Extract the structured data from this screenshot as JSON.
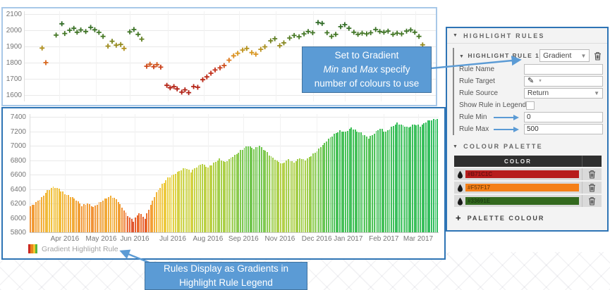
{
  "colors": {
    "accent_blue": "#5B9BD5",
    "callout_border": "#41719C",
    "panel_border": "#2E74B5",
    "top_chart_border": "#A8C8E8"
  },
  "chart_data": [
    {
      "type": "scatter",
      "name": "price-return-scatter",
      "marker": "plus",
      "grid": true,
      "ylim": [
        1600,
        2100
      ],
      "y_ticks": [
        2100,
        2000,
        1900,
        1800,
        1700,
        1600
      ],
      "color_stops": [
        [
          1600,
          "#AE1E14"
        ],
        [
          1760,
          "#C43019"
        ],
        [
          1815,
          "#DE7A1D"
        ],
        [
          1860,
          "#D99A22"
        ],
        [
          1900,
          "#A38E1F"
        ],
        [
          1930,
          "#7A841F"
        ],
        [
          1960,
          "#497A26"
        ],
        [
          2050,
          "#2F6B28"
        ]
      ],
      "points": [
        [
          4.4,
          1890
        ],
        [
          5.3,
          1800
        ],
        [
          7.8,
          1970
        ],
        [
          9.2,
          2040
        ],
        [
          9.9,
          1980
        ],
        [
          11.1,
          2000
        ],
        [
          12.1,
          2012
        ],
        [
          12.9,
          1988
        ],
        [
          13.8,
          2002
        ],
        [
          15.0,
          1992
        ],
        [
          16.2,
          2018
        ],
        [
          17.2,
          2003
        ],
        [
          18.2,
          1987
        ],
        [
          19.2,
          1962
        ],
        [
          20.4,
          1902
        ],
        [
          21.4,
          1932
        ],
        [
          22.4,
          1908
        ],
        [
          23.5,
          1912
        ],
        [
          24.3,
          1888
        ],
        [
          25.7,
          1990
        ],
        [
          26.7,
          2005
        ],
        [
          27.7,
          1975
        ],
        [
          28.6,
          1945
        ],
        [
          29.8,
          1778
        ],
        [
          30.6,
          1790
        ],
        [
          31.5,
          1775
        ],
        [
          32.3,
          1788
        ],
        [
          33.2,
          1772
        ],
        [
          34.7,
          1660
        ],
        [
          35.5,
          1645
        ],
        [
          36.4,
          1652
        ],
        [
          37.2,
          1638
        ],
        [
          38.3,
          1618
        ],
        [
          39.1,
          1632
        ],
        [
          40.0,
          1615
        ],
        [
          41.2,
          1652
        ],
        [
          42.2,
          1648
        ],
        [
          43.4,
          1695
        ],
        [
          44.4,
          1712
        ],
        [
          45.4,
          1735
        ],
        [
          46.4,
          1755
        ],
        [
          47.6,
          1768
        ],
        [
          48.6,
          1782
        ],
        [
          49.8,
          1815
        ],
        [
          50.9,
          1842
        ],
        [
          51.9,
          1858
        ],
        [
          53.1,
          1878
        ],
        [
          54.1,
          1888
        ],
        [
          55.3,
          1862
        ],
        [
          56.3,
          1852
        ],
        [
          57.5,
          1882
        ],
        [
          58.5,
          1898
        ],
        [
          59.9,
          1935
        ],
        [
          60.9,
          1948
        ],
        [
          62.1,
          1905
        ],
        [
          63.1,
          1922
        ],
        [
          64.5,
          1952
        ],
        [
          65.6,
          1968
        ],
        [
          66.8,
          1960
        ],
        [
          68.0,
          1978
        ],
        [
          69.0,
          1992
        ],
        [
          70.1,
          1985
        ],
        [
          71.4,
          2048
        ],
        [
          72.4,
          2042
        ],
        [
          73.6,
          1985
        ],
        [
          74.7,
          1962
        ],
        [
          75.7,
          1975
        ],
        [
          76.9,
          2022
        ],
        [
          77.9,
          2035
        ],
        [
          78.9,
          2012
        ],
        [
          80.1,
          1988
        ],
        [
          81.1,
          1975
        ],
        [
          82.1,
          1982
        ],
        [
          83.2,
          1978
        ],
        [
          84.2,
          1985
        ],
        [
          85.4,
          2005
        ],
        [
          86.4,
          1992
        ],
        [
          87.4,
          1988
        ],
        [
          88.4,
          1995
        ],
        [
          89.6,
          1975
        ],
        [
          90.6,
          1982
        ],
        [
          91.7,
          1978
        ],
        [
          92.9,
          1995
        ],
        [
          93.9,
          2002
        ],
        [
          94.9,
          1988
        ],
        [
          95.9,
          1962
        ],
        [
          96.8,
          1910
        ]
      ]
    },
    {
      "type": "bar",
      "name": "price-gradient-bars",
      "grid": true,
      "ylim": [
        5800,
        7400
      ],
      "y_ticks": [
        7400,
        7200,
        7000,
        6800,
        6600,
        6400,
        6200,
        6000,
        5800
      ],
      "x_labels": [
        {
          "text": "Apr 2016",
          "pct": 8.6
        },
        {
          "text": "May 2016",
          "pct": 17.5
        },
        {
          "text": "Jun 2016",
          "pct": 25.7
        },
        {
          "text": "Jul 2016",
          "pct": 35.0
        },
        {
          "text": "Aug 2016",
          "pct": 43.6
        },
        {
          "text": "Sep 2016",
          "pct": 52.3
        },
        {
          "text": "Nov 2016",
          "pct": 61.2
        },
        {
          "text": "Dec 2016",
          "pct": 70.2
        },
        {
          "text": "Jan 2017",
          "pct": 77.9
        },
        {
          "text": "Feb 2017",
          "pct": 86.6
        },
        {
          "text": "Mar 2017",
          "pct": 95.0
        }
      ],
      "color_stops": [
        [
          5900,
          "#D8422B"
        ],
        [
          6030,
          "#E9652F"
        ],
        [
          6180,
          "#F29B38"
        ],
        [
          6400,
          "#F2BF3B"
        ],
        [
          6570,
          "#E9D243"
        ],
        [
          6700,
          "#C6D247"
        ],
        [
          6830,
          "#9DCE4B"
        ],
        [
          6980,
          "#74C751"
        ],
        [
          7150,
          "#4DC258"
        ],
        [
          7400,
          "#2EBE60"
        ]
      ],
      "weekly_values": [
        6160,
        6210,
        6280,
        6380,
        6430,
        6400,
        6330,
        6300,
        6250,
        6170,
        6200,
        6150,
        6210,
        6260,
        6300,
        6260,
        6150,
        6030,
        5960,
        6070,
        5990,
        6180,
        6350,
        6460,
        6550,
        6600,
        6650,
        6700,
        6640,
        6710,
        6750,
        6700,
        6760,
        6820,
        6770,
        6830,
        6890,
        6950,
        7000,
        6960,
        7000,
        6930,
        6850,
        6790,
        6750,
        6810,
        6770,
        6830,
        6800,
        6860,
        6930,
        7010,
        7090,
        7160,
        7210,
        7190,
        7250,
        7200,
        7160,
        7110,
        7170,
        7240,
        7190,
        7260,
        7310,
        7280,
        7250,
        7300,
        7270,
        7330,
        7360,
        7370
      ]
    }
  ],
  "legend": {
    "label": "Gradient Highlight Rule",
    "icon_colors": [
      "#CC2A1F",
      "#E8821C",
      "#F2C52C",
      "#58B53C"
    ]
  },
  "panel": {
    "title": "HIGHLIGHT RULES",
    "rule": {
      "title": "HIGHLIGHT RULE 1",
      "type_value": "Gradient",
      "fields": [
        {
          "label": "Rule Name",
          "type": "text",
          "value": ""
        },
        {
          "label": "Rule Target",
          "type": "target",
          "value": "*"
        },
        {
          "label": "Rule Source",
          "type": "select",
          "value": "Return"
        },
        {
          "label": "Show Rule in Legend",
          "type": "checkbox",
          "value": ""
        },
        {
          "label": "Rule Min",
          "type": "text",
          "value": "0"
        },
        {
          "label": "Rule Max",
          "type": "text",
          "value": "500"
        }
      ]
    },
    "palette": {
      "title": "COLOUR PALETTE",
      "column_header": "COLOR",
      "colors": [
        {
          "hex": "#B71C1C",
          "label": "#B71C1C",
          "text_color": "#6E0F0F"
        },
        {
          "hex": "#F57F17",
          "label": "#F57F17",
          "text_color": "#8A4A0B"
        },
        {
          "hex": "#33691E",
          "label": "#33691E",
          "text_color": "#1C3D10"
        }
      ],
      "add_label": "PALETTE COLOUR"
    }
  },
  "callout1": {
    "line1": "Set to Gradient",
    "min_word": "Min",
    "mid": " and ",
    "max_word": "Max",
    "tail": " specify",
    "line3": "number of colours to use"
  },
  "callout2": {
    "line1": "Rules Display as Gradients in",
    "line2": "Highlight Rule Legend"
  }
}
